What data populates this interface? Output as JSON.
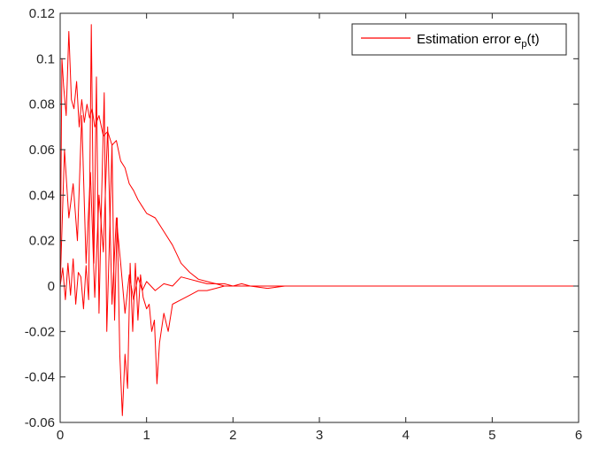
{
  "chart_data": {
    "type": "line",
    "title": "",
    "xlabel": "",
    "ylabel": "",
    "xlim": [
      0,
      6
    ],
    "ylim": [
      -0.06,
      0.12
    ],
    "xticks": [
      "0",
      "1",
      "2",
      "3",
      "4",
      "5",
      "6"
    ],
    "yticks": [
      "-0.06",
      "-0.04",
      "-0.02",
      "0",
      "0.02",
      "0.04",
      "0.06",
      "0.08",
      "0.1",
      "0.12"
    ],
    "grid": false,
    "legend": {
      "placement": "top-right",
      "label_main": "Estimation error e",
      "label_sub": "p",
      "label_tail": "(t)"
    },
    "series": [
      {
        "name": "Estimation error e_p(t)",
        "color": "#ff0000",
        "x": [
          0.0,
          0.02,
          0.04,
          0.07,
          0.1,
          0.13,
          0.16,
          0.19,
          0.22,
          0.25,
          0.28,
          0.31,
          0.34,
          0.37,
          0.4,
          0.45,
          0.5,
          0.55,
          0.6,
          0.65,
          0.7,
          0.75,
          0.8,
          0.85,
          0.9,
          0.95,
          1.0,
          1.1,
          1.2,
          1.3,
          1.4,
          1.5,
          1.6,
          1.7,
          1.8,
          1.9,
          2.0,
          2.1,
          2.2,
          2.3,
          2.4,
          2.5,
          3.0,
          4.0,
          5.0,
          6.0
        ],
        "y": [
          0.0,
          0.1,
          0.088,
          0.075,
          0.112,
          0.082,
          0.078,
          0.09,
          0.07,
          0.082,
          0.072,
          0.08,
          0.074,
          0.078,
          0.07,
          0.075,
          0.066,
          0.068,
          0.062,
          0.064,
          0.055,
          0.052,
          0.045,
          0.042,
          0.038,
          0.035,
          0.032,
          0.03,
          0.024,
          0.018,
          0.01,
          0.006,
          0.003,
          0.002,
          0.001,
          0.001,
          0.0,
          0.0,
          0.0,
          0.0,
          0.0,
          0.0,
          0.0,
          0.0,
          0.0,
          0.0
        ]
      },
      {
        "name": "Estimation error e_p(t)",
        "color": "#ff0000",
        "x": [
          0.0,
          0.03,
          0.06,
          0.09,
          0.12,
          0.15,
          0.18,
          0.21,
          0.24,
          0.27,
          0.3,
          0.33,
          0.36,
          0.39,
          0.42,
          0.45,
          0.48,
          0.51,
          0.54,
          0.57,
          0.6,
          0.63,
          0.66,
          0.69,
          0.72,
          0.75,
          0.78,
          0.81,
          0.84,
          0.87,
          0.9,
          0.93,
          0.96,
          1.0,
          1.03,
          1.06,
          1.09,
          1.12,
          1.15,
          1.2,
          1.25,
          1.3,
          1.4,
          1.5,
          1.6,
          1.7,
          1.8,
          1.9,
          2.0,
          2.1,
          2.2,
          2.4,
          2.6,
          3.0,
          4.0,
          5.0,
          6.0
        ],
        "y": [
          0.0,
          0.008,
          -0.006,
          0.01,
          -0.004,
          0.012,
          -0.008,
          0.006,
          0.004,
          -0.01,
          0.009,
          -0.006,
          0.115,
          0.01,
          0.092,
          -0.012,
          0.04,
          0.085,
          -0.02,
          0.02,
          0.062,
          -0.015,
          0.03,
          -0.03,
          -0.057,
          -0.03,
          -0.045,
          0.01,
          -0.02,
          0.01,
          -0.015,
          0.005,
          -0.005,
          -0.01,
          -0.008,
          -0.02,
          -0.015,
          -0.043,
          -0.025,
          -0.012,
          -0.02,
          -0.008,
          -0.006,
          -0.004,
          -0.002,
          -0.002,
          -0.001,
          0.0,
          0.0,
          0.001,
          0.0,
          -0.001,
          0.0,
          0.0,
          0.0,
          0.0,
          0.0
        ]
      },
      {
        "name": "Estimation error e_p(t)",
        "color": "#ff0000",
        "x": [
          0.0,
          0.05,
          0.1,
          0.15,
          0.2,
          0.25,
          0.3,
          0.35,
          0.4,
          0.45,
          0.5,
          0.55,
          0.6,
          0.65,
          0.7,
          0.75,
          0.8,
          0.85,
          0.9,
          0.95,
          1.0,
          1.1,
          1.2,
          1.3,
          1.4,
          1.5,
          1.6,
          1.7,
          1.8,
          1.9,
          2.0,
          2.2,
          2.4,
          3.0,
          4.0,
          5.0,
          6.0
        ],
        "y": [
          0.0,
          0.06,
          0.03,
          0.045,
          0.02,
          0.075,
          0.01,
          0.05,
          -0.005,
          0.04,
          0.015,
          0.07,
          -0.008,
          0.03,
          0.01,
          -0.012,
          0.005,
          -0.006,
          0.004,
          -0.002,
          0.002,
          -0.002,
          0.001,
          0.0,
          0.004,
          0.003,
          0.002,
          0.001,
          0.001,
          0.0,
          0.0,
          0.0,
          0.0,
          0.0,
          0.0,
          0.0,
          0.0
        ]
      }
    ]
  }
}
